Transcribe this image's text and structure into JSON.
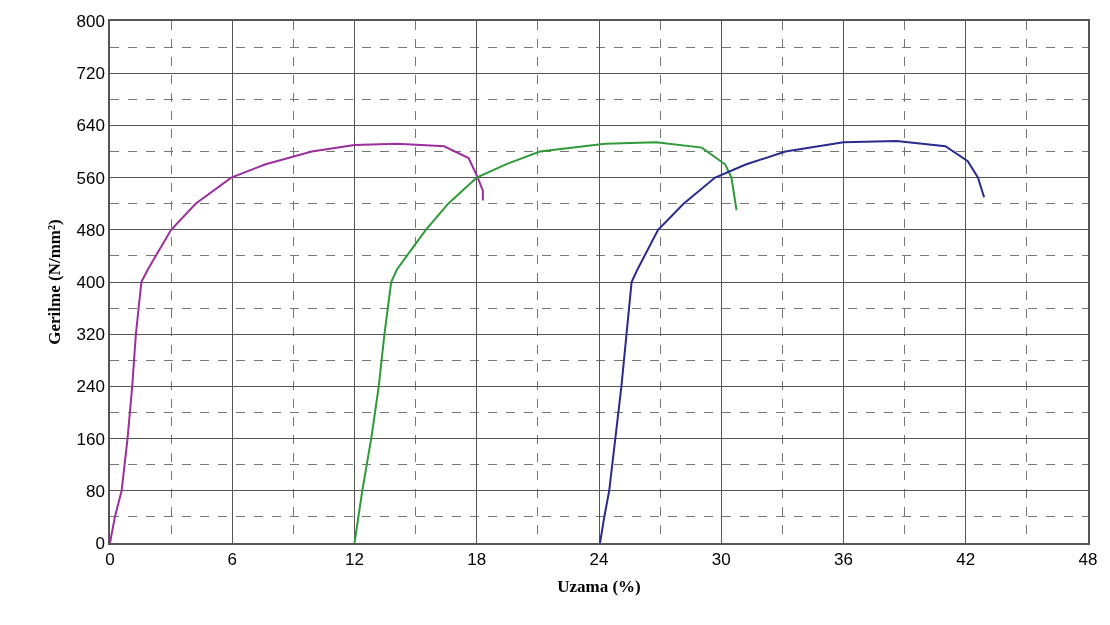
{
  "chart_data": {
    "type": "line",
    "xlabel": "Uzama (%)",
    "ylabel": "Gerilme (N/mm²)",
    "xlim": [
      0,
      48
    ],
    "ylim": [
      0,
      800
    ],
    "xticks": [
      0,
      6,
      12,
      18,
      24,
      30,
      36,
      42,
      48
    ],
    "yticks": [
      0,
      80,
      160,
      240,
      320,
      400,
      480,
      560,
      640,
      720,
      800
    ],
    "grid": true,
    "marker": "none",
    "line_style": "solid",
    "series": [
      {
        "color": "#9b2f9b",
        "x": [
          0,
          0.24,
          0.57,
          0.86,
          1.09,
          1.27,
          1.54,
          1.87,
          3.0,
          4.2,
          5.95,
          7.6,
          9.9,
          12,
          14.1,
          16.4,
          17.6,
          18.05,
          18.3,
          18.3
        ],
        "values": [
          0,
          40,
          80,
          160,
          240,
          320,
          400,
          420,
          480,
          520,
          560,
          580,
          600,
          610,
          612,
          608,
          590,
          560,
          540,
          525
        ]
      },
      {
        "color": "#2e9a3a",
        "x": [
          12,
          12.38,
          12.82,
          13.19,
          13.47,
          13.8,
          14.1,
          15.5,
          16.6,
          18.0,
          19.4,
          21.1,
          24.3,
          26.8,
          29.05,
          30.2,
          30.5,
          30.75
        ],
        "values": [
          0,
          80,
          160,
          240,
          320,
          400,
          420,
          480,
          520,
          560,
          580,
          600,
          612,
          614,
          606,
          580,
          560,
          510
        ]
      },
      {
        "color": "#2a2a8e",
        "x": [
          24.05,
          24.26,
          24.5,
          24.8,
          25.1,
          25.35,
          25.6,
          25.9,
          26.9,
          28.15,
          29.7,
          31.2,
          33.15,
          36,
          38.6,
          41.0,
          42.1,
          42.6,
          42.9
        ],
        "values": [
          0,
          40,
          80,
          160,
          240,
          320,
          400,
          420,
          480,
          520,
          560,
          580,
          600,
          614,
          616,
          608,
          585,
          560,
          530
        ]
      }
    ]
  }
}
